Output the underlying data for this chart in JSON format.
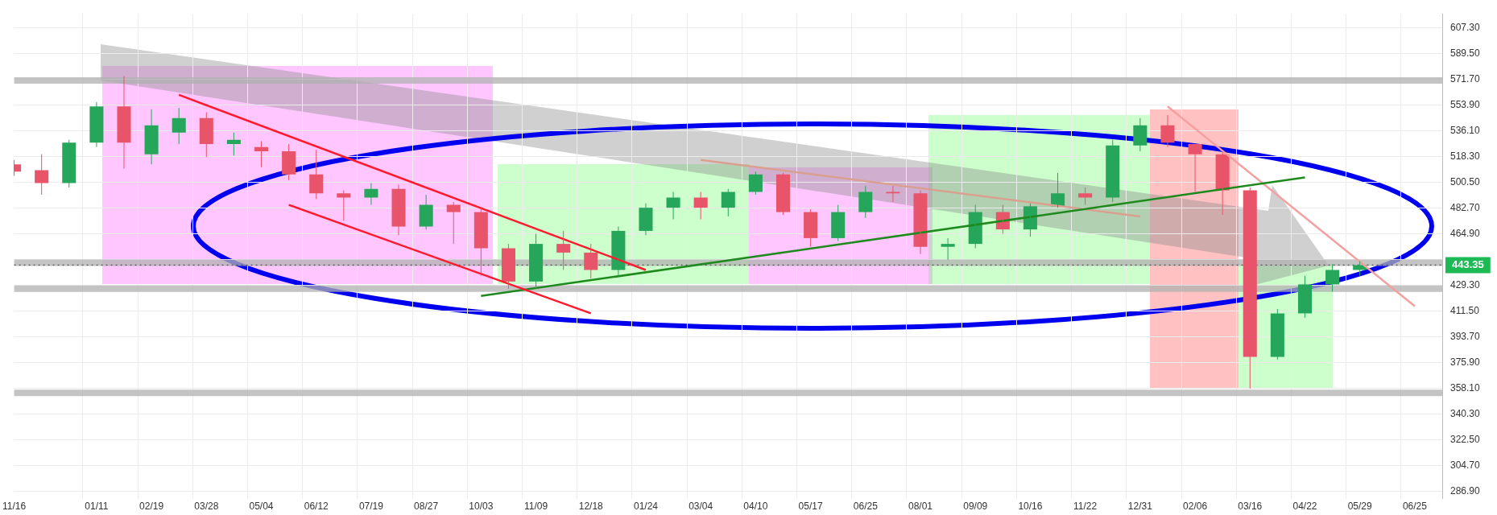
{
  "chart_data": {
    "type": "candlestick",
    "categories": [
      "11/16",
      null,
      null,
      "01/11",
      null,
      "02/19",
      null,
      "03/28",
      null,
      "05/04",
      null,
      "06/12",
      null,
      "07/19",
      null,
      "08/27",
      null,
      "10/03",
      null,
      "11/09",
      null,
      "12/18",
      null,
      "01/24",
      null,
      "03/04",
      null,
      "04/10",
      null,
      "05/17",
      null,
      "06/25",
      null,
      "08/01",
      null,
      "09/09",
      null,
      "10/16",
      null,
      "11/22",
      null,
      "12/31",
      null,
      "02/06",
      null,
      "03/16",
      null,
      "04/22",
      null,
      "05/29",
      null,
      "06/25",
      null
    ],
    "ohlc": [
      [
        513,
        516,
        505,
        508
      ],
      [
        509,
        520,
        492,
        500
      ],
      [
        500,
        530,
        497,
        528
      ],
      [
        528,
        556,
        525,
        553
      ],
      [
        553,
        574,
        510,
        528
      ],
      [
        520,
        551,
        513,
        540
      ],
      [
        535,
        552,
        527,
        545
      ],
      [
        545,
        549,
        518,
        527
      ],
      [
        527,
        535,
        519,
        530
      ],
      [
        525,
        529,
        511,
        522
      ],
      [
        522,
        527,
        502,
        506
      ],
      [
        506,
        523,
        489,
        493
      ],
      [
        493,
        495,
        474,
        490
      ],
      [
        490,
        500,
        485,
        496
      ],
      [
        496,
        499,
        464,
        470
      ],
      [
        470,
        492,
        468,
        485
      ],
      [
        485,
        487,
        458,
        480
      ],
      [
        480,
        483,
        436,
        455
      ],
      [
        455,
        458,
        427,
        432
      ],
      [
        432,
        465,
        427,
        458
      ],
      [
        458,
        467,
        440,
        452
      ],
      [
        452,
        458,
        434,
        440
      ],
      [
        440,
        470,
        436,
        467
      ],
      [
        467,
        486,
        464,
        483
      ],
      [
        483,
        494,
        475,
        490
      ],
      [
        490,
        494,
        475,
        483
      ],
      [
        483,
        496,
        477,
        494
      ],
      [
        494,
        508,
        492,
        506
      ],
      [
        506,
        507,
        478,
        480
      ],
      [
        480,
        482,
        456,
        462
      ],
      [
        462,
        485,
        460,
        480
      ],
      [
        480,
        498,
        476,
        494
      ],
      [
        494,
        498,
        487,
        493
      ],
      [
        493,
        495,
        451,
        456
      ],
      [
        456,
        462,
        447,
        458
      ],
      [
        458,
        485,
        455,
        480
      ],
      [
        480,
        485,
        465,
        468
      ],
      [
        468,
        486,
        463,
        484
      ],
      [
        484,
        507,
        483,
        493
      ],
      [
        493,
        497,
        485,
        490
      ],
      [
        490,
        530,
        487,
        526
      ],
      [
        526,
        545,
        522,
        540
      ],
      [
        540,
        547,
        525,
        528
      ],
      [
        527,
        527,
        494,
        520
      ],
      [
        520,
        522,
        478,
        495
      ],
      [
        495,
        497,
        358,
        380
      ],
      [
        380,
        413,
        378,
        410
      ],
      [
        410,
        436,
        407,
        430
      ],
      [
        430,
        444,
        425,
        440
      ],
      [
        440,
        446,
        436,
        443.35
      ],
      null,
      null,
      null
    ],
    "colors": [
      "#e8546a",
      "#e8546a",
      "#26a65b",
      "#26a65b",
      "#e8546a",
      "#26a65b",
      "#26a65b",
      "#e8546a",
      "#26a65b",
      "#e8546a",
      "#e8546a",
      "#e8546a",
      "#e8546a",
      "#26a65b",
      "#e8546a",
      "#26a65b",
      "#e8546a",
      "#e8546a",
      "#e8546a",
      "#26a65b",
      "#e8546a",
      "#e8546a",
      "#26a65b",
      "#26a65b",
      "#26a65b",
      "#e8546a",
      "#26a65b",
      "#26a65b",
      "#e8546a",
      "#e8546a",
      "#26a65b",
      "#26a65b",
      "#e8546a",
      "#e8546a",
      "#26a65b",
      "#26a65b",
      "#e8546a",
      "#26a65b",
      "#26a65b",
      "#e8546a",
      "#26a65b",
      "#26a65b",
      "#e8546a",
      "#e8546a",
      "#e8546a",
      "#e8546a",
      "#26a65b",
      "#26a65b",
      "#26a65b",
      "#26a65b",
      null,
      null,
      null
    ],
    "series": [
      {
        "type": "line",
        "color": "#ff1a2e",
        "values": [
          null,
          null,
          null,
          null,
          null,
          null,
          561,
          null,
          null,
          null,
          null,
          null,
          null,
          null,
          null,
          null,
          null,
          null,
          null,
          null,
          null,
          null,
          null,
          440,
          null,
          null,
          null,
          null,
          null,
          null,
          null,
          null,
          null,
          null,
          null,
          null,
          null,
          null,
          null,
          null,
          null,
          null,
          null,
          null,
          null,
          null,
          null,
          null,
          null,
          null,
          null,
          null,
          null
        ]
      },
      {
        "type": "line",
        "color": "#ff1a2e",
        "values": [
          null,
          null,
          null,
          null,
          null,
          null,
          null,
          null,
          null,
          null,
          485,
          null,
          null,
          null,
          null,
          null,
          null,
          null,
          null,
          null,
          null,
          410,
          null,
          null,
          null,
          null,
          null,
          null,
          null,
          null,
          null,
          null,
          null,
          null,
          null,
          null,
          null,
          null,
          null,
          null,
          null,
          null,
          null,
          null,
          null,
          null,
          null,
          null,
          null,
          null,
          null,
          null,
          null
        ]
      },
      {
        "type": "line",
        "color": "#1e8a1e",
        "values": [
          null,
          null,
          null,
          null,
          null,
          null,
          null,
          null,
          null,
          null,
          null,
          null,
          null,
          null,
          null,
          null,
          null,
          422,
          null,
          null,
          null,
          null,
          null,
          null,
          null,
          null,
          null,
          null,
          null,
          null,
          null,
          null,
          null,
          null,
          null,
          null,
          null,
          null,
          null,
          null,
          null,
          null,
          null,
          null,
          null,
          null,
          null,
          504,
          null,
          null,
          null,
          null,
          null
        ]
      },
      {
        "type": "line",
        "color": "#d9a090",
        "values": [
          null,
          null,
          null,
          null,
          null,
          null,
          null,
          null,
          null,
          null,
          null,
          null,
          null,
          null,
          null,
          null,
          null,
          null,
          null,
          null,
          null,
          null,
          null,
          null,
          null,
          516,
          null,
          null,
          null,
          null,
          null,
          null,
          null,
          null,
          null,
          null,
          null,
          null,
          null,
          null,
          null,
          477,
          null,
          null,
          null,
          null,
          null,
          null,
          null,
          null,
          null,
          null,
          null
        ]
      },
      {
        "type": "line",
        "color": "#f4a0a0",
        "values": [
          null,
          null,
          null,
          null,
          null,
          null,
          null,
          null,
          null,
          null,
          null,
          null,
          null,
          null,
          null,
          null,
          null,
          null,
          null,
          null,
          null,
          null,
          null,
          null,
          null,
          null,
          null,
          null,
          null,
          null,
          null,
          null,
          null,
          null,
          null,
          null,
          null,
          null,
          null,
          null,
          null,
          null,
          553,
          null,
          null,
          null,
          null,
          null,
          null,
          null,
          null,
          415,
          null
        ]
      }
    ],
    "ylim": [
      282,
      617
    ],
    "yticks": [
      {
        "value": 286.9,
        "label": "286.90"
      },
      {
        "value": 304.7,
        "label": "304.70"
      },
      {
        "value": 322.5,
        "label": "322.50"
      },
      {
        "value": 340.3,
        "label": "340.30"
      },
      {
        "value": 358.1,
        "label": "358.10"
      },
      {
        "value": 375.9,
        "label": "375.90"
      },
      {
        "value": 393.7,
        "label": "393.70"
      },
      {
        "value": 411.5,
        "label": "411.50"
      },
      {
        "value": 429.3,
        "label": "429.30"
      },
      {
        "value": 447.1,
        "label": null
      },
      {
        "value": 464.9,
        "label": "464.90"
      },
      {
        "value": 482.7,
        "label": "482.70"
      },
      {
        "value": 500.5,
        "label": "500.50"
      },
      {
        "value": 518.3,
        "label": "518.30"
      },
      {
        "value": 536.1,
        "label": "536.10"
      },
      {
        "value": 553.9,
        "label": "553.90"
      },
      {
        "value": 571.7,
        "label": "571.70"
      },
      {
        "value": 589.5,
        "label": "589.50"
      },
      {
        "value": 607.3,
        "label": "607.30"
      }
    ],
    "grid": true,
    "legend": false,
    "ref_lines": [
      {
        "axis": "y",
        "value": 571,
        "color": "#b0b0b0"
      },
      {
        "axis": "y",
        "value": 445,
        "color": "#b0b0b0"
      },
      {
        "axis": "y",
        "value": 427,
        "color": "#b0b0b0"
      },
      {
        "axis": "y",
        "value": 355,
        "color": "#b0b0b0"
      },
      {
        "axis": "y",
        "value": 443.35,
        "label": "443.35",
        "color": "#555555",
        "line_style": "dotted"
      }
    ]
  }
}
